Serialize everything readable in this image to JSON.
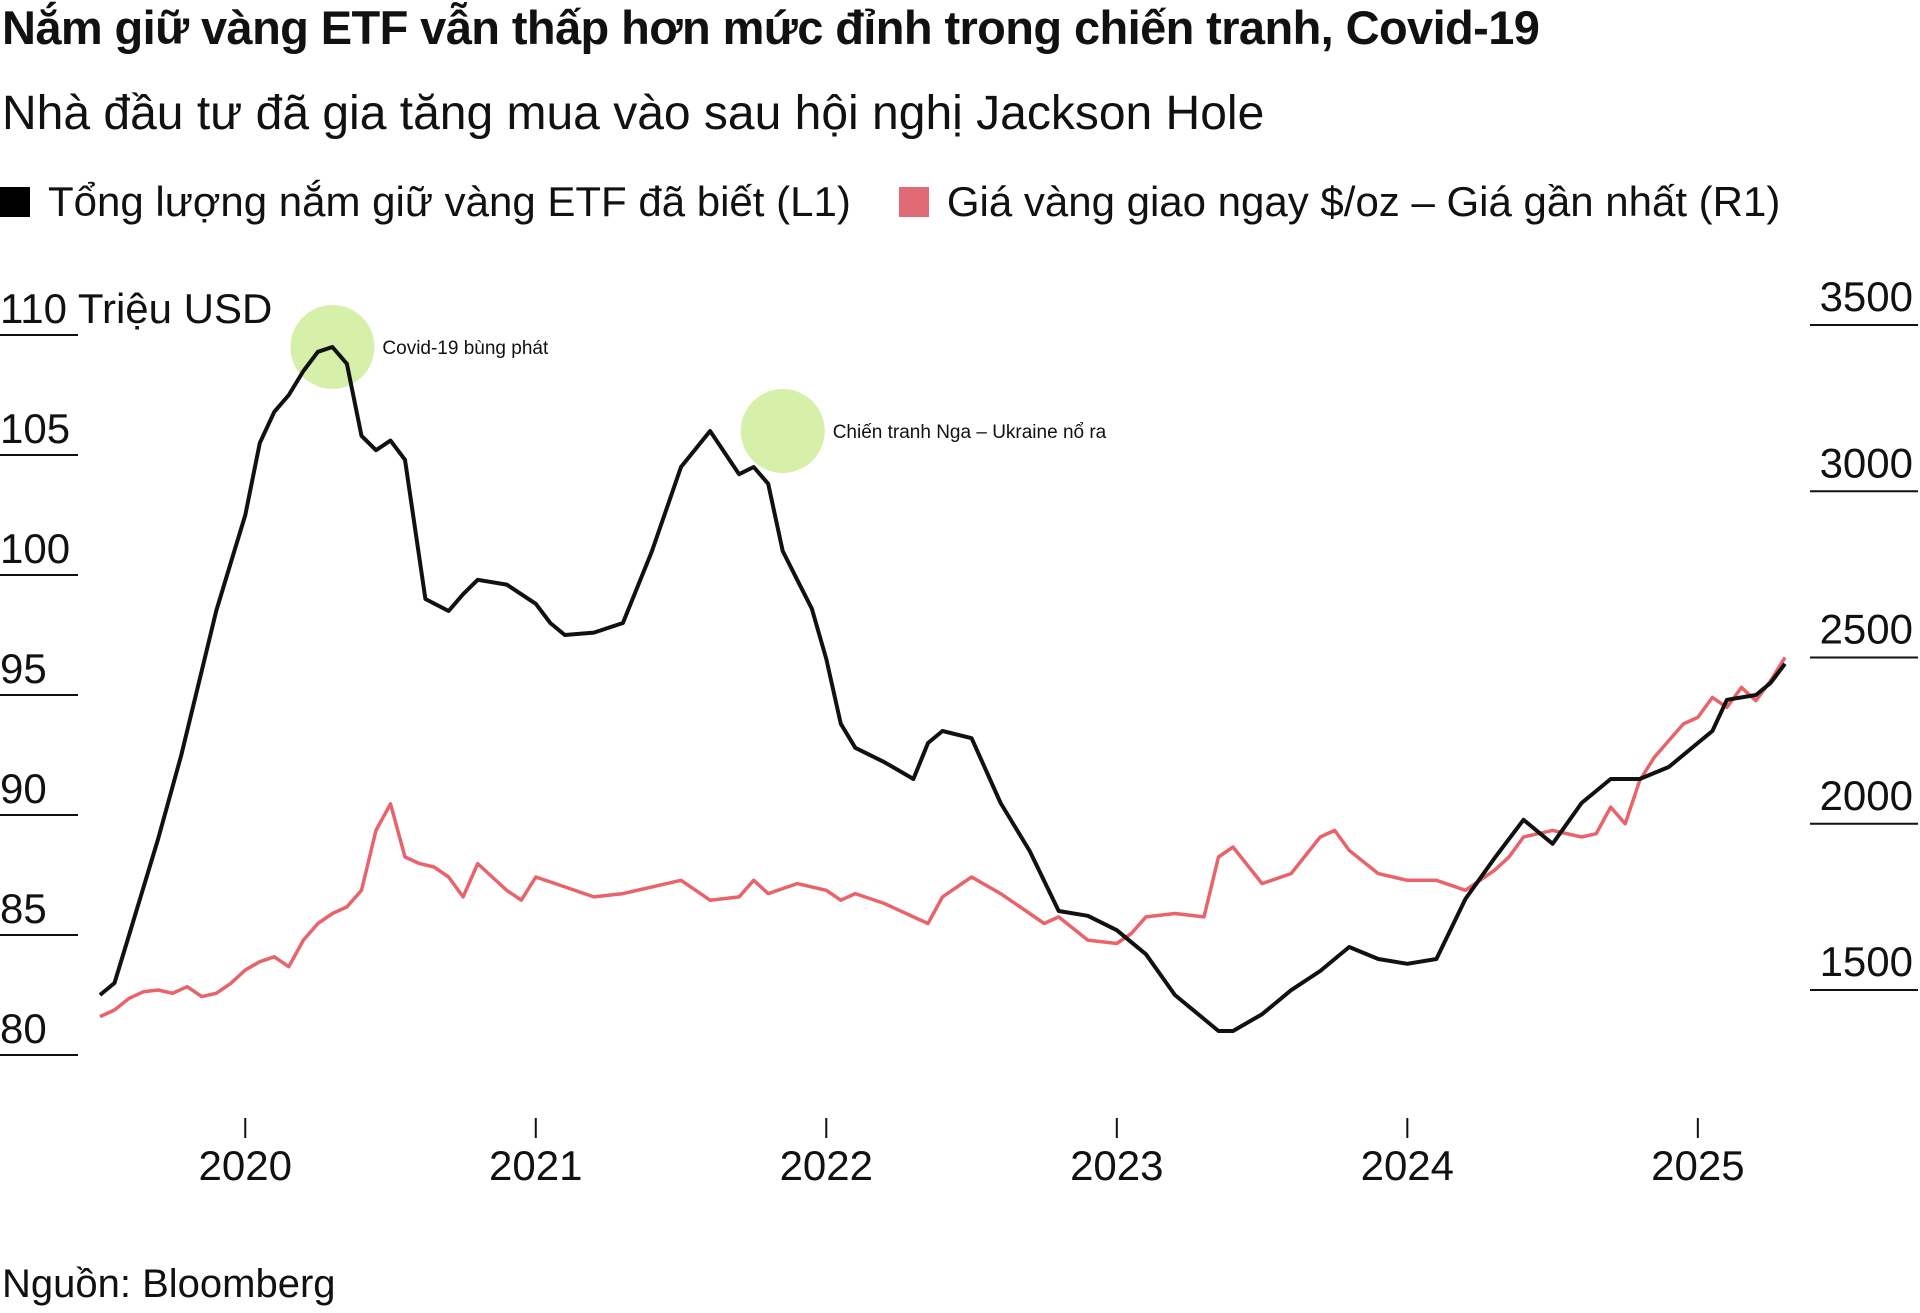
{
  "header": {
    "title": "Nắm giữ vàng ETF vẫn thấp hơn mức đỉnh trong chiến tranh, Covid-19",
    "subtitle": "Nhà đầu tư đã gia tăng mua vào sau hội nghị Jackson Hole"
  },
  "legend": {
    "items": [
      {
        "label": "Tổng lượng nắm giữ vàng ETF đã biết (L1)",
        "color": "#000000"
      },
      {
        "label": "Giá vàng giao ngay $/oz – Giá gần nhất (R1)",
        "color": "#e06b74"
      }
    ]
  },
  "footer": {
    "source": "Nguồn: Bloomberg"
  },
  "colors": {
    "etf": "#111111",
    "gold": "#e8646a",
    "highlight": "#c8eb8c"
  },
  "chart_data": {
    "type": "line",
    "title": "Nắm giữ vàng ETF vẫn thấp hơn mức đỉnh trong chiến tranh, Covid-19",
    "subtitle": "Nhà đầu tư đã gia tăng mua vào sau hội nghị Jackson Hole",
    "x_range": [
      2019.5,
      2025.3
    ],
    "x_ticks": [
      2020,
      2021,
      2022,
      2023,
      2024,
      2025
    ],
    "x_tick_labels": [
      "2020",
      "2021",
      "2022",
      "2023",
      "2024",
      "2025"
    ],
    "y_left": {
      "label": "Triệu USD",
      "range": [
        80,
        110
      ],
      "ticks": [
        80,
        85,
        90,
        95,
        100,
        105,
        110
      ],
      "tick_labels": [
        "80",
        "85",
        "90",
        "95",
        "100",
        "105",
        "110 Triệu USD"
      ]
    },
    "y_right": {
      "range": [
        1500,
        3500
      ],
      "ticks": [
        1500,
        2000,
        2500,
        3000,
        3500
      ],
      "tick_labels": [
        "1500",
        "2000",
        "2500",
        "3000",
        "3500"
      ]
    },
    "series": [
      {
        "name": "Tổng lượng nắm giữ vàng ETF đã biết (L1)",
        "axis": "left",
        "x": [
          2019.5,
          2019.55,
          2019.6,
          2019.7,
          2019.78,
          2019.85,
          2019.9,
          2019.95,
          2020.0,
          2020.05,
          2020.1,
          2020.15,
          2020.2,
          2020.25,
          2020.3,
          2020.35,
          2020.4,
          2020.45,
          2020.5,
          2020.55,
          2020.62,
          2020.7,
          2020.75,
          2020.8,
          2020.9,
          2021.0,
          2021.05,
          2021.1,
          2021.2,
          2021.3,
          2021.4,
          2021.5,
          2021.6,
          2021.7,
          2021.75,
          2021.8,
          2021.85,
          2021.9,
          2021.95,
          2022.0,
          2022.05,
          2022.1,
          2022.2,
          2022.3,
          2022.35,
          2022.4,
          2022.5,
          2022.6,
          2022.7,
          2022.8,
          2022.9,
          2023.0,
          2023.1,
          2023.2,
          2023.3,
          2023.35,
          2023.4,
          2023.5,
          2023.6,
          2023.7,
          2023.8,
          2023.9,
          2024.0,
          2024.1,
          2024.2,
          2024.3,
          2024.4,
          2024.5,
          2024.6,
          2024.7,
          2024.8,
          2024.9,
          2025.0,
          2025.05,
          2025.1,
          2025.2,
          2025.25,
          2025.3
        ],
        "values": [
          82.5,
          83.0,
          85.0,
          89.0,
          92.5,
          96.0,
          98.5,
          100.5,
          102.5,
          105.5,
          106.8,
          107.5,
          108.5,
          109.3,
          109.5,
          108.8,
          105.8,
          105.2,
          105.6,
          104.8,
          99.0,
          98.5,
          99.2,
          99.8,
          99.6,
          98.8,
          98.0,
          97.5,
          97.6,
          98.0,
          101.0,
          104.5,
          106.0,
          104.2,
          104.5,
          103.8,
          101.0,
          99.8,
          98.6,
          96.5,
          93.8,
          92.8,
          92.2,
          91.5,
          93.0,
          93.5,
          93.2,
          90.5,
          88.5,
          86.0,
          85.8,
          85.2,
          84.2,
          82.5,
          81.5,
          81.0,
          81.0,
          81.7,
          82.7,
          83.5,
          84.5,
          84.0,
          83.8,
          84.0,
          86.5,
          88.2,
          89.8,
          88.8,
          90.5,
          91.5,
          91.5,
          92.0,
          93.0,
          93.5,
          94.8,
          95.0,
          95.5,
          96.3
        ]
      },
      {
        "name": "Giá vàng giao ngay $/oz – Giá gần nhất (R1)",
        "axis": "right",
        "x": [
          2019.5,
          2019.55,
          2019.6,
          2019.65,
          2019.7,
          2019.75,
          2019.8,
          2019.85,
          2019.9,
          2019.95,
          2020.0,
          2020.05,
          2020.1,
          2020.15,
          2020.2,
          2020.25,
          2020.3,
          2020.35,
          2020.4,
          2020.45,
          2020.5,
          2020.55,
          2020.6,
          2020.65,
          2020.7,
          2020.75,
          2020.8,
          2020.85,
          2020.9,
          2020.95,
          2021.0,
          2021.1,
          2021.2,
          2021.3,
          2021.4,
          2021.5,
          2021.6,
          2021.7,
          2021.75,
          2021.8,
          2021.9,
          2022.0,
          2022.05,
          2022.1,
          2022.2,
          2022.3,
          2022.35,
          2022.4,
          2022.5,
          2022.6,
          2022.7,
          2022.75,
          2022.8,
          2022.9,
          2023.0,
          2023.05,
          2023.1,
          2023.2,
          2023.3,
          2023.35,
          2023.4,
          2023.5,
          2023.6,
          2023.7,
          2023.75,
          2023.8,
          2023.9,
          2024.0,
          2024.1,
          2024.2,
          2024.3,
          2024.35,
          2024.4,
          2024.5,
          2024.6,
          2024.65,
          2024.7,
          2024.75,
          2024.8,
          2024.85,
          2024.9,
          2024.95,
          2025.0,
          2025.05,
          2025.1,
          2025.15,
          2025.2,
          2025.25,
          2025.3
        ],
        "values": [
          1420,
          1440,
          1475,
          1495,
          1500,
          1490,
          1510,
          1480,
          1490,
          1520,
          1560,
          1585,
          1600,
          1570,
          1650,
          1700,
          1730,
          1750,
          1800,
          1980,
          2060,
          1900,
          1880,
          1870,
          1840,
          1780,
          1880,
          1840,
          1800,
          1770,
          1840,
          1810,
          1780,
          1790,
          1810,
          1830,
          1770,
          1780,
          1830,
          1790,
          1820,
          1800,
          1770,
          1790,
          1760,
          1720,
          1700,
          1780,
          1840,
          1790,
          1730,
          1700,
          1720,
          1650,
          1640,
          1670,
          1720,
          1730,
          1720,
          1900,
          1930,
          1820,
          1850,
          1960,
          1980,
          1920,
          1850,
          1830,
          1830,
          1800,
          1860,
          1900,
          1960,
          1980,
          1960,
          1970,
          2050,
          2000,
          2130,
          2200,
          2250,
          2300,
          2320,
          2380,
          2350,
          2410,
          2370,
          2430,
          2500
        ]
      }
    ],
    "annotations": [
      {
        "label": "Covid-19 bùng phát",
        "x": 2020.3,
        "y": 109.5
      },
      {
        "label": "Chiến tranh Nga – Ukraine nổ ra",
        "x": 2021.85,
        "y": 106.0
      }
    ],
    "source": "Nguồn: Bloomberg"
  }
}
